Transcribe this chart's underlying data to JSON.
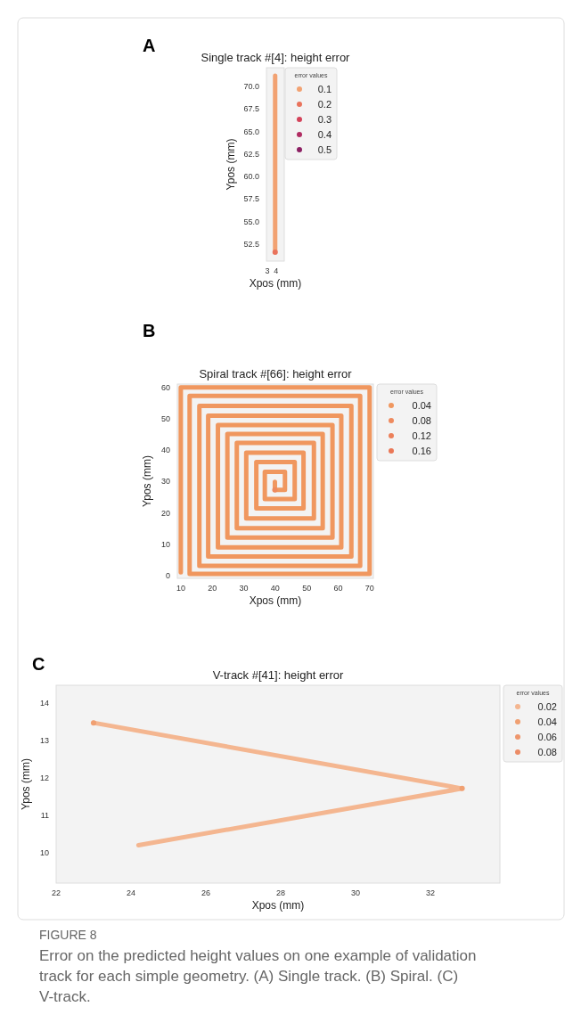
{
  "chart_data": [
    {
      "type": "scatter",
      "title": "Single track #[4]: height error",
      "xlabel": "Xpos (mm)",
      "ylabel": "Ypos (mm)",
      "legend_title": "error values",
      "legend": "top right",
      "marker": "circle",
      "grid": false,
      "xlim": [
        2.9,
        4.95
      ],
      "xticks": [
        3,
        4
      ],
      "ylim": [
        50.6,
        72.1
      ],
      "yticks": [
        52.5,
        {
          "value": 55,
          "label": "55.0"
        },
        57.5,
        {
          "value": 60,
          "label": "60.0"
        },
        62.5,
        {
          "value": 65,
          "label": "65.0"
        },
        67.5,
        {
          "value": 70,
          "label": "70.0"
        }
      ],
      "annotations": [
        "A"
      ],
      "series": [
        {
          "name": "0.1",
          "color": "#f2a272",
          "type": "line",
          "marker": "none",
          "x": [
            3.9,
            3.9
          ],
          "values": [
            71.2,
            51.6
          ]
        },
        {
          "name": "0.2",
          "color": "#e9735c",
          "x": [
            3.9
          ],
          "values": [
            51.6
          ]
        },
        {
          "name": "0.3",
          "color": "#d4435a"
        },
        {
          "name": "0.4",
          "color": "#b02c62"
        },
        {
          "name": "0.5",
          "color": "#8c2063"
        }
      ]
    },
    {
      "type": "scatter",
      "title": "Spiral track #[66]: height error",
      "xlabel": "Xpos (mm)",
      "ylabel": "Ypos (mm)",
      "legend_title": "error values",
      "legend": "right",
      "marker": "circle",
      "grid": false,
      "xlim": [
        8.9,
        71.2
      ],
      "xticks": [
        10,
        20,
        30,
        40,
        50,
        60,
        70
      ],
      "ylim": [
        -0.9,
        61.1
      ],
      "yticks": [
        0,
        10,
        20,
        30,
        40,
        50,
        60
      ],
      "annotations": [
        "B"
      ],
      "series": [
        {
          "name": "0.04",
          "color": "#f0975f",
          "type": "line",
          "marker": "none",
          "x": [
            10,
            10,
            70,
            70,
            12.8,
            12.8,
            67,
            67,
            15.9,
            15.9,
            64.2,
            64.2,
            18.7,
            18.7,
            61,
            61,
            21.8,
            21.8,
            58.2,
            58.2,
            24.8,
            24.8,
            55.1,
            55.1,
            27.8,
            27.8,
            52.3,
            52.3,
            30.8,
            30.8,
            49,
            49,
            34,
            34,
            46.2,
            46.2,
            36.7,
            36.7,
            43.1,
            43.1,
            39.9,
            39.9
          ],
          "values": [
            1,
            60,
            60,
            0.5,
            0.5,
            57.3,
            57.3,
            3.1,
            3.1,
            54.1,
            54.1,
            6.1,
            6.1,
            51,
            51,
            9,
            9,
            48,
            48,
            12.1,
            12.1,
            45.2,
            45.2,
            15.1,
            15.1,
            42.3,
            42.3,
            18.2,
            18.2,
            39.2,
            39.2,
            21.4,
            21.4,
            36.2,
            36.2,
            24.4,
            24.4,
            33.1,
            33.1,
            27.3,
            27.3,
            29.9
          ]
        },
        {
          "name": "0.08",
          "color": "#ee8a5e",
          "x": [
            39.9
          ],
          "values": [
            27.3
          ]
        },
        {
          "name": "0.12",
          "color": "#ec805a"
        },
        {
          "name": "0.16",
          "color": "#ea7756"
        }
      ]
    },
    {
      "type": "scatter",
      "title": "V-track #[41]: height error",
      "xlabel": "Xpos (mm)",
      "ylabel": "Ypos (mm)",
      "legend_title": "error values",
      "legend": "right",
      "marker": "circle",
      "grid": false,
      "xlim": [
        22,
        33.86
      ],
      "xticks": [
        22,
        24,
        26,
        28,
        30,
        32
      ],
      "ylim": [
        9.2,
        14.47
      ],
      "yticks": [
        10,
        11,
        12,
        13,
        14
      ],
      "annotations": [
        "C",
        "FIGURE 8",
        "Error on the predicted height values on one example of validation track for each simple geometry. (A) Single track. (B) Spiral. (C) V-track."
      ],
      "series": [
        {
          "name": "0.02",
          "color": "#f4b690",
          "type": "line",
          "marker": "none",
          "x": [
            23,
            32.85,
            24.2
          ],
          "values": [
            13.47,
            11.72,
            10.21
          ]
        },
        {
          "name": "0.04",
          "color": "#f0a072",
          "x": [
            23,
            32.85
          ],
          "values": [
            13.47,
            11.72
          ]
        },
        {
          "name": "0.06",
          "color": "#ee966c"
        },
        {
          "name": "0.08",
          "color": "#ec8c66"
        }
      ]
    }
  ]
}
